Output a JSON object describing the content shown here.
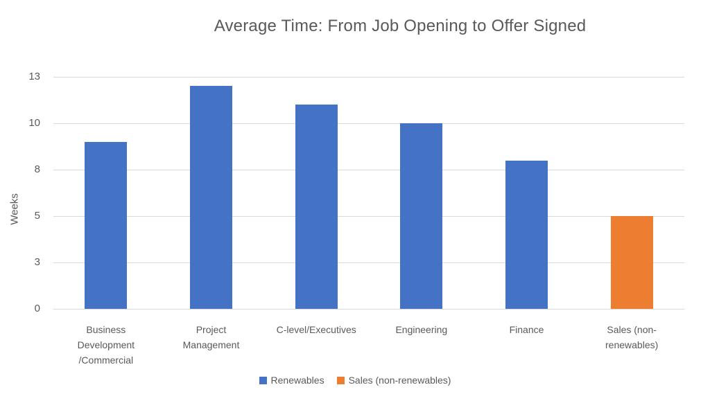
{
  "chart_data": {
    "type": "bar",
    "title": "Average Time: From Job Opening to Offer Signed",
    "xlabel": "",
    "ylabel": "Weeks",
    "ylim": [
      0,
      12.5
    ],
    "grid": true,
    "legend_position": "bottom",
    "y_ticks": [
      {
        "value": 0,
        "label": "0"
      },
      {
        "value": 2.5,
        "label": "3"
      },
      {
        "value": 5,
        "label": "5"
      },
      {
        "value": 7.5,
        "label": "8"
      },
      {
        "value": 10,
        "label": "10"
      },
      {
        "value": 12.5,
        "label": "13"
      }
    ],
    "categories": [
      "Business Development /Commercial",
      "Project Management",
      "C-level/Executives",
      "Engineering",
      "Finance",
      "Sales (non-renewables)"
    ],
    "category_label_lines": [
      [
        "Business",
        "Development",
        "/Commercial"
      ],
      [
        "Project",
        "Management"
      ],
      [
        "C-level/Executives"
      ],
      [
        "Engineering"
      ],
      [
        "Finance"
      ],
      [
        "Sales (non-",
        "renewables)"
      ]
    ],
    "values": [
      9,
      12,
      11,
      10,
      8,
      5
    ],
    "bar_series": [
      "Renewables",
      "Renewables",
      "Renewables",
      "Renewables",
      "Renewables",
      "Sales (non-renewables)"
    ],
    "series": [
      {
        "name": "Renewables",
        "color": "#4472C4"
      },
      {
        "name": "Sales (non-renewables)",
        "color": "#ED7D31"
      }
    ],
    "colors": {
      "text": "#595959",
      "gridline": "#D9D9D9",
      "background": "#FFFFFF"
    }
  }
}
